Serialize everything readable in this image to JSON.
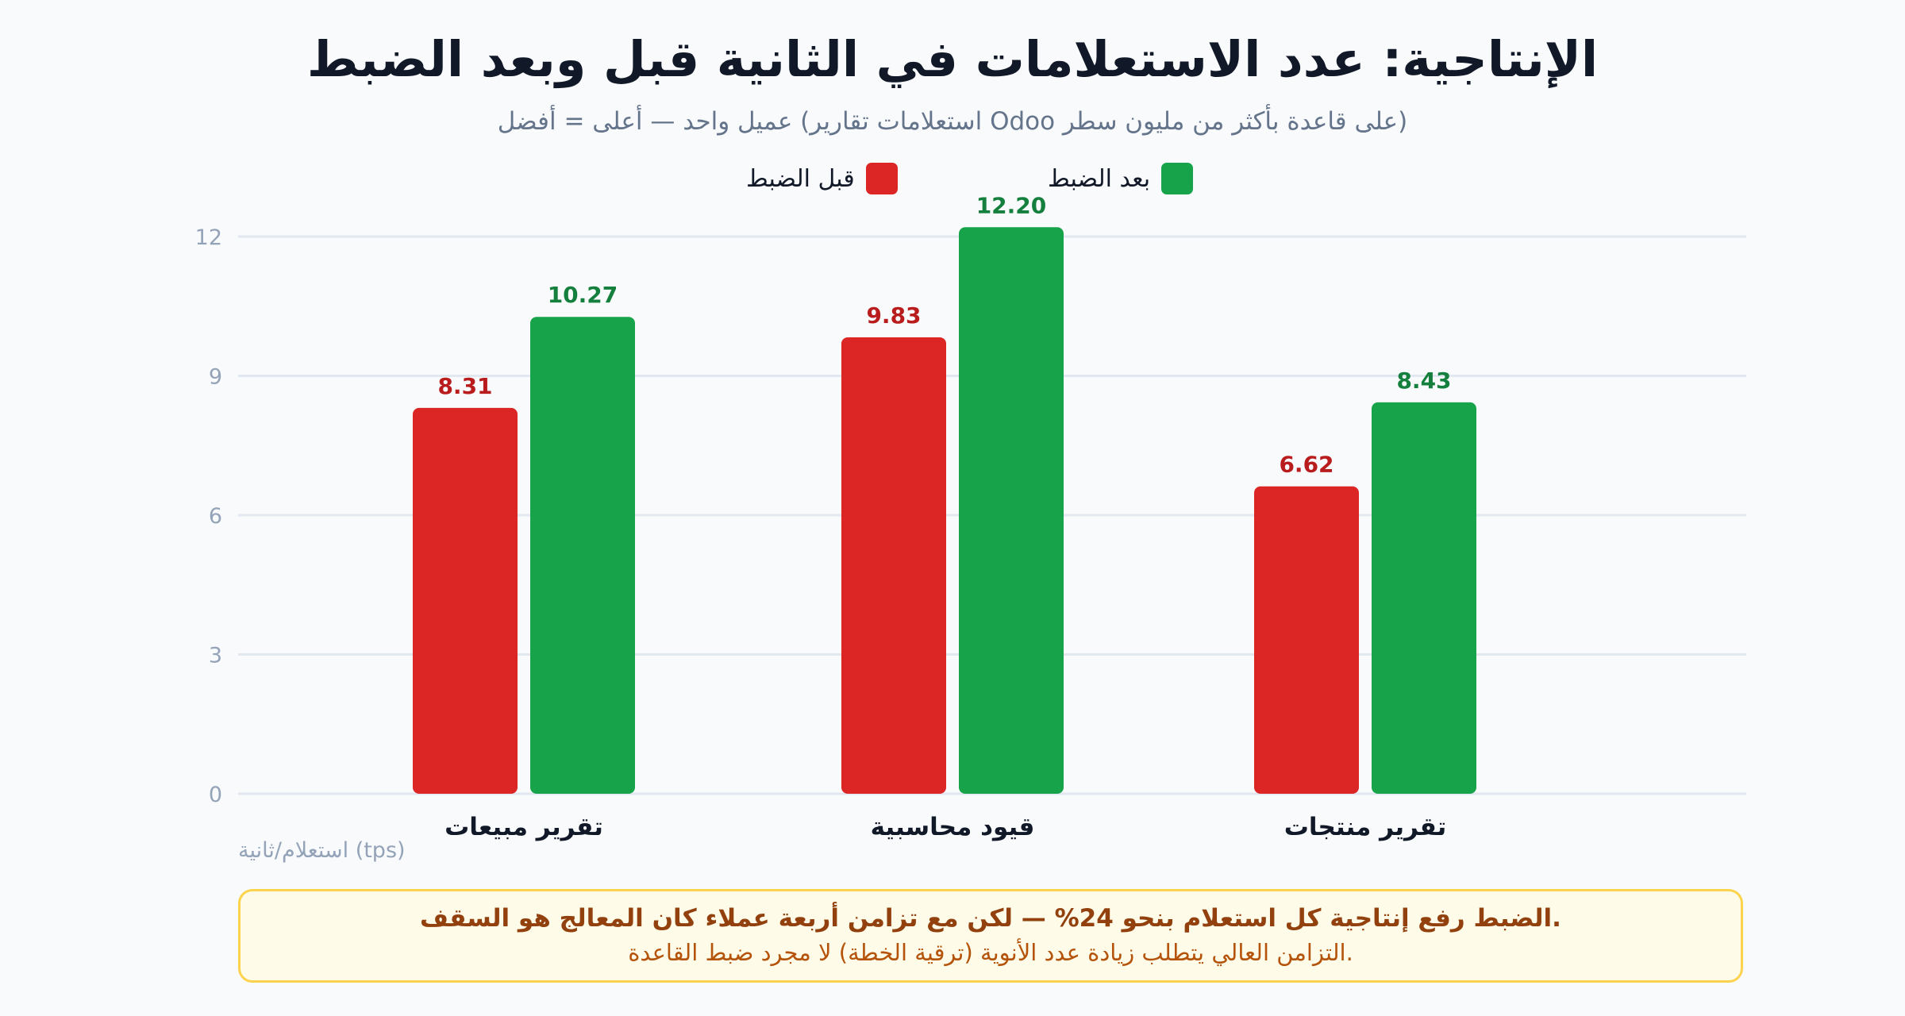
{
  "chart_data": {
    "type": "bar",
    "title": "الإنتاجية: عدد الاستعلامات في الثانية قبل وبعد الضبط",
    "subtitle": "(على قاعدة بأكثر من مليون سطر Odoo استعلامات تقارير) عميل واحد — أعلى = أفضل",
    "ylabel": "استعلام/ثانية (tps)",
    "categories": [
      "تقرير مبيعات",
      "قيود محاسبية",
      "تقرير منتجات"
    ],
    "series": [
      {
        "name": "قبل الضبط",
        "values": [
          8.31,
          9.83,
          6.62
        ],
        "color": "#dc2626",
        "label_color": "#b91c1c"
      },
      {
        "name": "بعد الضبط",
        "values": [
          10.27,
          12.2,
          8.43
        ],
        "color": "#16a34a",
        "label_color": "#15803d"
      }
    ],
    "value_labels": [
      [
        "8.31",
        "9.83",
        "6.62"
      ],
      [
        "10.27",
        "12.20",
        "8.43"
      ]
    ],
    "ylim": [
      0,
      12
    ],
    "yticks": [
      0,
      3,
      6,
      9,
      12
    ],
    "grid": true,
    "legend_position": "top-center"
  },
  "callout": {
    "main": ".الضبط رفع إنتاجية كل استعلام بنحو 24% — لكن مع تزامن أربعة عملاء كان المعالج هو السقف",
    "sub": ".التزامن العالي يتطلب زيادة عدد الأنوية (ترقية الخطة) لا مجرد ضبط القاعدة"
  },
  "colors": {
    "grid": "#e2e8f0",
    "tick": "#94a3b8",
    "category": "#111827",
    "callout_border": "#fcd34d"
  }
}
